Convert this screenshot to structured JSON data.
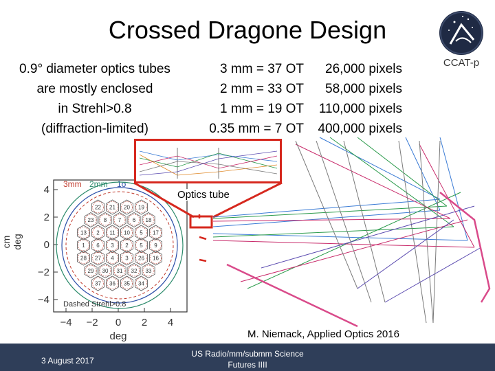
{
  "slide": {
    "title": "Crossed Dragone Design",
    "intro_lines": [
      "0.9° diameter optics tubes",
      "are mostly enclosed",
      "in Strehl>0.8",
      "(diffraction-limited)"
    ],
    "table": [
      {
        "size": "3 mm = 37 OT",
        "pixels": "26,000 pixels"
      },
      {
        "size": "2 mm = 33 OT",
        "pixels": "58,000 pixels"
      },
      {
        "size": "1 mm = 19 OT",
        "pixels": "110,000 pixels"
      },
      {
        "size": "0.35 mm = 7 OT",
        "pixels": "400,000 pixels"
      }
    ],
    "optics_tube_label": "Optics tube",
    "citation": "M. Niemack, Applied Optics 2016"
  },
  "logo": {
    "text": "CCAT-p"
  },
  "plot": {
    "ylabels": [
      "cm",
      "deg"
    ],
    "xlabel": "deg",
    "yticks": [
      "4",
      "2",
      "0",
      "−2",
      "−4"
    ],
    "xticks": [
      "−4",
      "−2",
      "0",
      "2",
      "4"
    ],
    "legend": [
      "3mm",
      "2mm",
      "1o"
    ],
    "dashed_label": "Dashed Strehl>0.8",
    "hex_rows": [
      [
        "22",
        "21",
        "20",
        "19"
      ],
      [
        "23",
        "8",
        "7",
        "6",
        "18"
      ],
      [
        "13",
        "2",
        "11",
        "10",
        "5",
        "17"
      ],
      [
        "1",
        "6",
        "3",
        "2",
        "5",
        "9"
      ],
      [
        "28",
        "27",
        "4",
        "3",
        "26",
        "16"
      ],
      [
        "29",
        "30",
        "31",
        "32",
        "33"
      ],
      [
        "37",
        "36",
        "35",
        "34"
      ]
    ]
  },
  "footer": {
    "date": "3 August 2017",
    "event_line1": "US Radio/mm/submm Science",
    "event_line2": "Futures IIII"
  },
  "colors": {
    "footer_bg": "#2f3e59",
    "highlight": "#d6281e"
  }
}
